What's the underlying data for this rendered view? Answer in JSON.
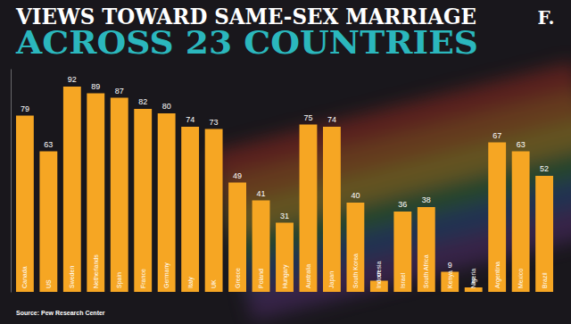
{
  "chart_data": {
    "type": "bar",
    "title": "VIEWS TOWARD SAME-SEX MARRIAGE",
    "subtitle": "ACROSS 23 COUNTRIES",
    "source": "Source: Pew Research Center",
    "annotations": [
      "F."
    ],
    "categories": [
      "Canada",
      "US",
      "Sweden",
      "Netherlands",
      "Spain",
      "France",
      "Germany",
      "Italy",
      "UK",
      "Greece",
      "Poland",
      "Hungary",
      "Australia",
      "Japan",
      "South Korea",
      "Indonesia",
      "Israel",
      "South Africa",
      "Kenya",
      "Nigeria",
      "Argentina",
      "Mexico",
      "Brazil"
    ],
    "values": [
      79,
      63,
      92,
      89,
      87,
      82,
      80,
      74,
      73,
      49,
      41,
      31,
      75,
      74,
      40,
      5,
      36,
      38,
      9,
      2,
      67,
      63,
      52
    ],
    "color": "#f6a623",
    "ylim": [
      0,
      100
    ],
    "data_labels": true,
    "tick_labels": false,
    "grid": false
  }
}
